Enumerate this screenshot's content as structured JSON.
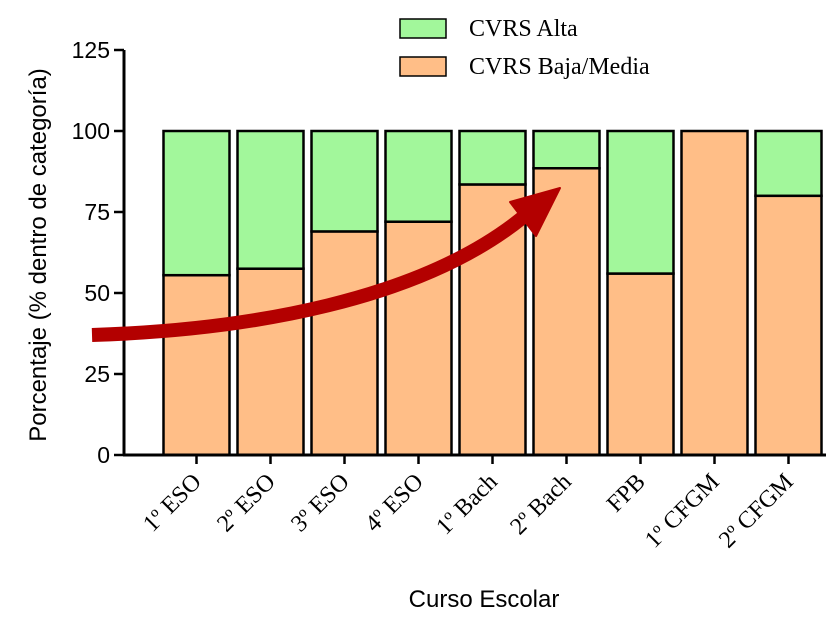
{
  "chart_data": {
    "type": "bar",
    "stacked": true,
    "categories": [
      "1º ESO",
      "2º ESO",
      "3º ESO",
      "4º ESO",
      "1º Bach",
      "2º Bach",
      "FPB",
      "1º CFGM",
      "2º CFGM"
    ],
    "series": [
      {
        "name": "CVRS Baja/Media",
        "color": "#FFBE87",
        "values": [
          55.5,
          57.5,
          69,
          72,
          83.5,
          88.5,
          56,
          100,
          80
        ]
      },
      {
        "name": "CVRS Alta",
        "color": "#A2F79B",
        "values": [
          44.5,
          42.5,
          31,
          28,
          16.5,
          11.5,
          44,
          0,
          20
        ]
      }
    ],
    "legend_order": [
      "CVRS Alta",
      "CVRS Baja/Media"
    ],
    "legend_position": "top-right",
    "xlabel": "Curso Escolar",
    "ylabel": "Porcentaje (% dentro de categoría)",
    "ylim": [
      0,
      125
    ],
    "yticks": [
      0,
      25,
      50,
      75,
      100,
      125
    ],
    "grid": false,
    "annotation": {
      "type": "arrow",
      "color": "#B30000",
      "description": "curved red arrow indicating increasing trend"
    }
  }
}
